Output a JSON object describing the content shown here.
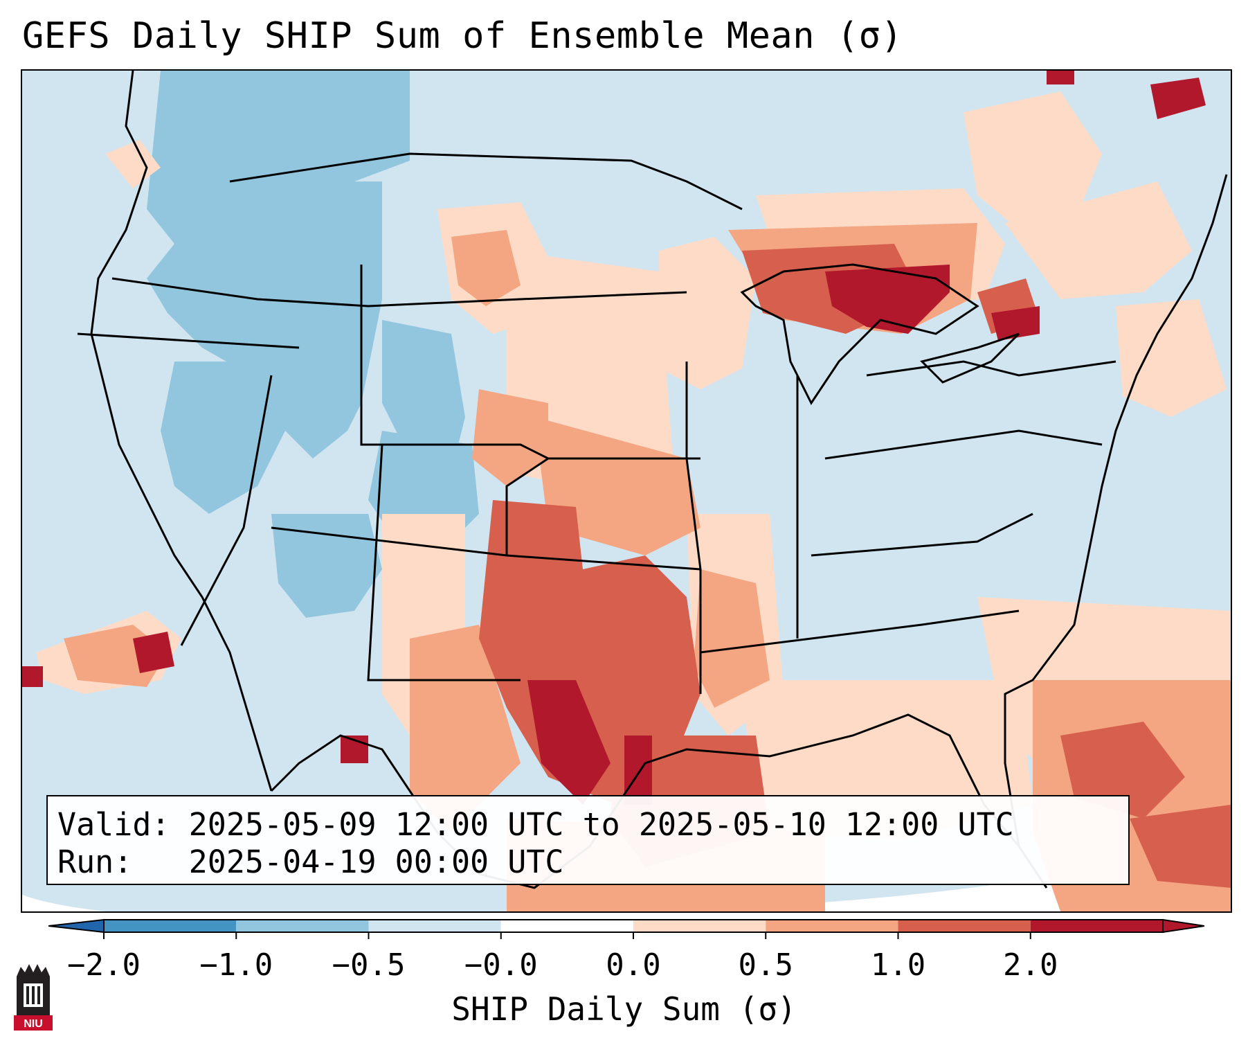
{
  "title": "GEFS Daily SHIP Sum of Ensemble Mean (σ)",
  "info": {
    "valid_line": "Valid: 2025-05-09 12:00 UTC to 2025-05-10 12:00 UTC",
    "run_line": "Run:   2025-04-19 00:00 UTC"
  },
  "colorbar": {
    "label": "SHIP Daily Sum (σ)",
    "ticks": [
      "−2.0",
      "−1.0",
      "−0.5",
      "−0.0",
      "0.0",
      "0.5",
      "1.0",
      "2.0"
    ],
    "colors": [
      "#4393c3",
      "#92c5de",
      "#d1e5f0",
      "#ffffff",
      "#fddbc7",
      "#f4a582",
      "#d6604d",
      "#b2182b"
    ],
    "extend": "both"
  },
  "logo": {
    "text": "NIU"
  }
}
